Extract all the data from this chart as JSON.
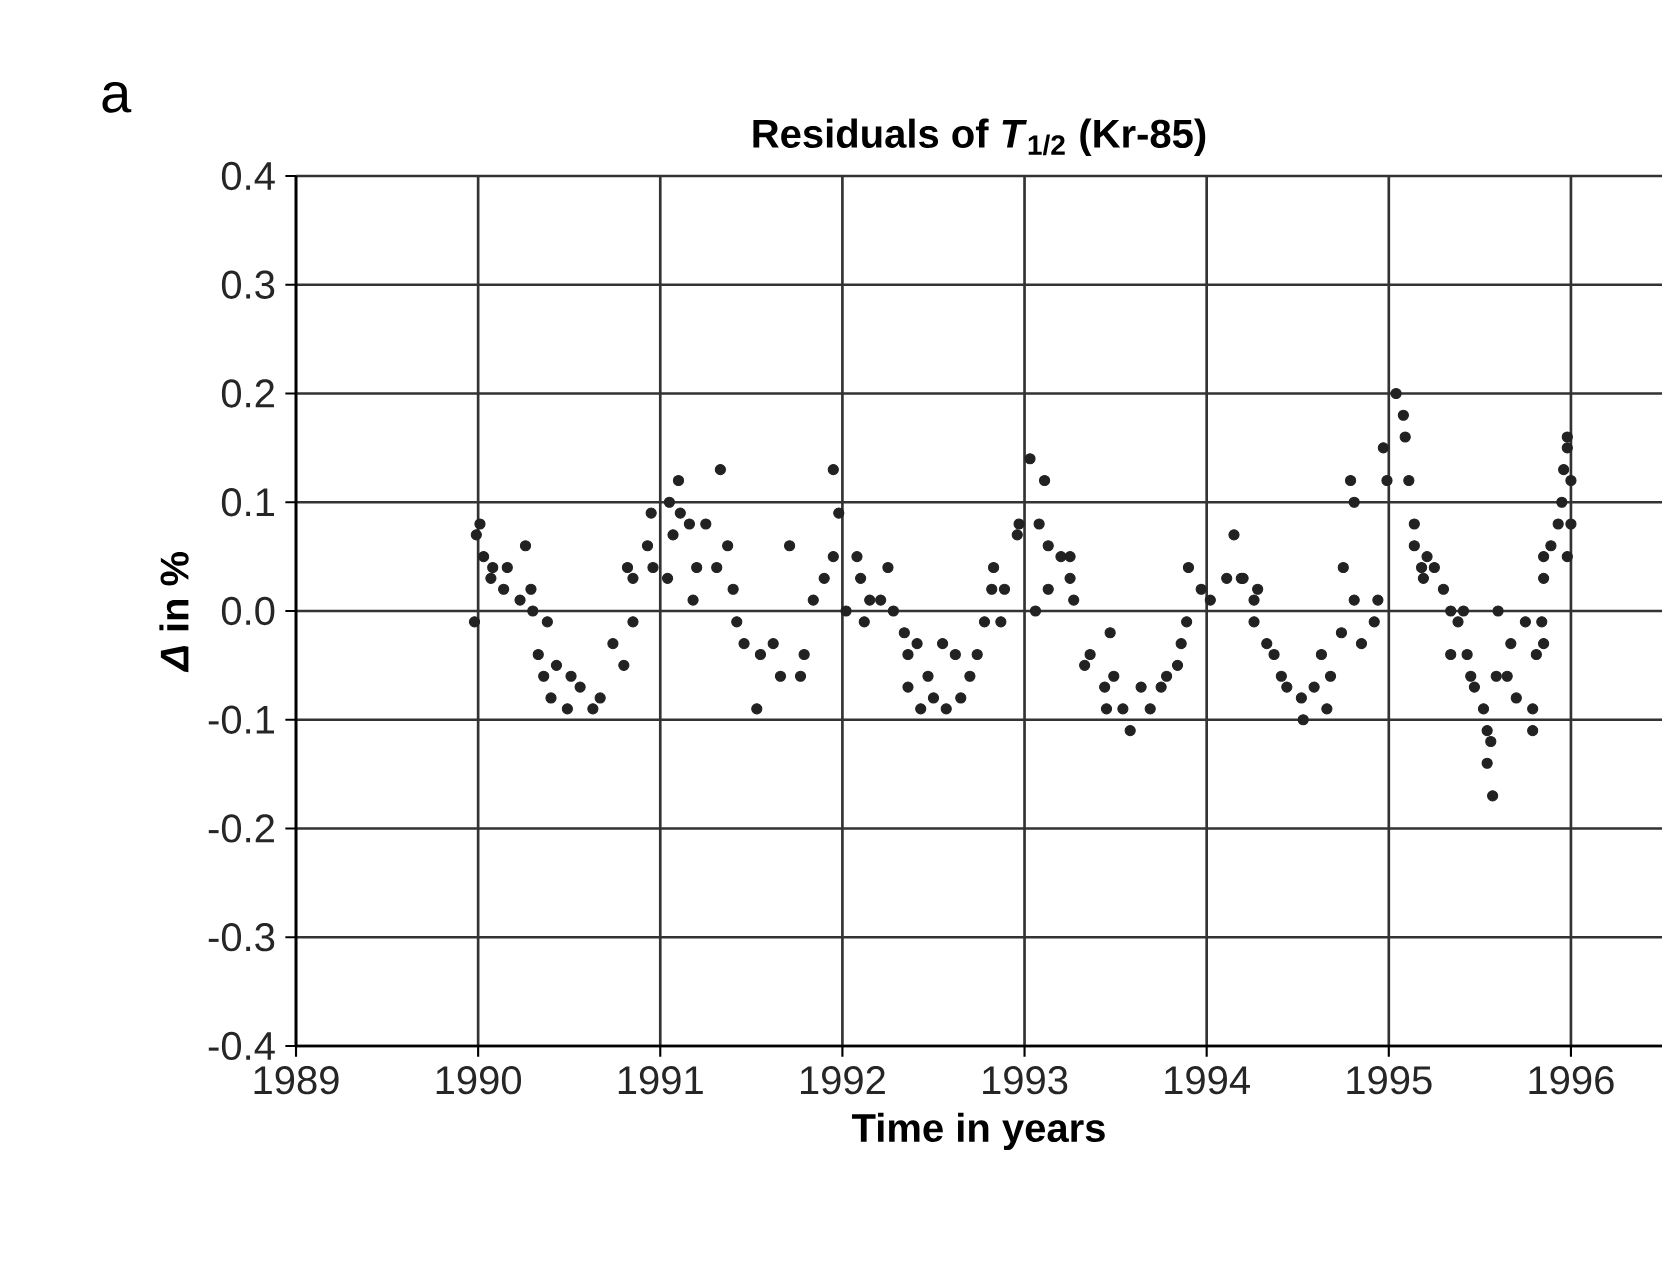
{
  "chart_data": {
    "type": "scatter",
    "title": "Residuals of *T*$_{1/2}$ (Kr-85)",
    "xlabel": "Time in years",
    "ylabel": "*Δ* in %",
    "annotations": [
      "a"
    ],
    "xlim": [
      1989,
      1996.5
    ],
    "xticks": [
      1989,
      1990,
      1991,
      1992,
      1993,
      1994,
      1995,
      1996
    ],
    "ylim": [
      -0.4,
      0.4
    ],
    "yticks": [
      {
        "value": -0.4,
        "label": "-0.4"
      },
      {
        "value": -0.3,
        "label": "-0.3"
      },
      {
        "value": -0.2,
        "label": "-0.2"
      },
      {
        "value": -0.1,
        "label": "-0.1"
      },
      {
        "value": 0,
        "label": "0.0"
      },
      {
        "value": 0.1,
        "label": "0.1"
      },
      {
        "value": 0.2,
        "label": "0.2"
      },
      {
        "value": 0.3,
        "label": "0.3"
      },
      {
        "value": 0.4,
        "label": "0.4"
      }
    ],
    "grid": true,
    "marker": "circle",
    "series": [
      {
        "color": "#222222",
        "x": [
          1989.98,
          1990.01,
          1989.99,
          1990.03,
          1990.08,
          1990.16,
          1990.07,
          1990.14,
          1990.26,
          1990.23,
          1990.29,
          1990.3,
          1990.38,
          1990.33,
          1990.43,
          1990.36,
          1990.4,
          1990.49,
          1990.51,
          1990.56,
          1990.63,
          1990.67,
          1990.74,
          1990.8,
          1990.85,
          1990.82,
          1990.85,
          1990.93,
          1990.96,
          1990.95,
          1991.04,
          1991.05,
          1991.1,
          1991.11,
          1991.07,
          1991.16,
          1991.18,
          1991.25,
          1991.2,
          1991.33,
          1991.31,
          1991.37,
          1991.4,
          1991.42,
          1991.46,
          1991.53,
          1991.55,
          1991.62,
          1991.66,
          1991.77,
          1991.79,
          1991.71,
          1991.84,
          1991.9,
          1991.95,
          1991.98,
          1991.95,
          1992.02,
          1992.08,
          1992.1,
          1992.15,
          1992.25,
          1992.21,
          1992.12,
          1992.28,
          1992.34,
          1992.41,
          1992.36,
          1992.55,
          1992.47,
          1992.36,
          1992.43,
          1992.57,
          1992.5,
          1992.62,
          1992.65,
          1992.7,
          1992.74,
          1992.78,
          1992.87,
          1992.83,
          1992.89,
          1992.82,
          1992.96,
          1992.97,
          1993.03,
          1993.11,
          1993.08,
          1993.13,
          1993.13,
          1993.06,
          1993.2,
          1993.25,
          1993.25,
          1993.27,
          1993.36,
          1993.33,
          1993.47,
          1993.44,
          1993.49,
          1993.45,
          1993.58,
          1993.54,
          1993.64,
          1993.69,
          1993.75,
          1993.78,
          1993.84,
          1993.86,
          1993.89,
          1993.9,
          1993.97,
          1994.02,
          1994.11,
          1994.15,
          1994.19,
          1994.26,
          1994.2,
          1994.28,
          1994.26,
          1994.33,
          1994.37,
          1994.41,
          1994.44,
          1994.52,
          1994.53,
          1994.59,
          1994.63,
          1994.66,
          1994.68,
          1994.74,
          1994.75,
          1994.81,
          1994.79,
          1994.81,
          1994.85,
          1994.94,
          1994.92,
          1994.97,
          1994.99,
          1995.04,
          1995.08,
          1995.09,
          1995.11,
          1995.14,
          1995.14,
          1995.18,
          1995.21,
          1995.19,
          1995.25,
          1995.3,
          1995.34,
          1995.38,
          1995.41,
          1995.34,
          1995.43,
          1995.45,
          1995.47,
          1995.52,
          1995.54,
          1995.54,
          1995.57,
          1995.56,
          1995.59,
          1995.6,
          1995.67,
          1995.65,
          1995.7,
          1995.75,
          1995.79,
          1995.79,
          1995.81,
          1995.85,
          1995.84,
          1995.85,
          1995.85,
          1995.89,
          1995.93,
          1995.98,
          1995.95,
          1995.96,
          1995.98,
          1995.98,
          1996.0,
          1996.0
        ],
        "values": [
          -0.01,
          0.08,
          0.07,
          0.05,
          0.04,
          0.04,
          0.03,
          0.02,
          0.06,
          0.01,
          0.02,
          0.0,
          -0.01,
          -0.04,
          -0.05,
          -0.06,
          -0.08,
          -0.09,
          -0.06,
          -0.07,
          -0.09,
          -0.08,
          -0.03,
          -0.05,
          -0.01,
          0.04,
          0.03,
          0.06,
          0.04,
          0.09,
          0.03,
          0.1,
          0.12,
          0.09,
          0.07,
          0.08,
          0.01,
          0.08,
          0.04,
          0.13,
          0.04,
          0.06,
          0.02,
          -0.01,
          -0.03,
          -0.09,
          -0.04,
          -0.03,
          -0.06,
          -0.06,
          -0.04,
          0.06,
          0.01,
          0.03,
          0.13,
          0.09,
          0.05,
          0.0,
          0.05,
          0.03,
          0.01,
          0.04,
          0.01,
          -0.01,
          0.0,
          -0.02,
          -0.03,
          -0.04,
          -0.03,
          -0.06,
          -0.07,
          -0.09,
          -0.09,
          -0.08,
          -0.04,
          -0.08,
          -0.06,
          -0.04,
          -0.01,
          -0.01,
          0.04,
          0.02,
          0.02,
          0.07,
          0.08,
          0.14,
          0.12,
          0.08,
          0.06,
          0.02,
          0.0,
          0.05,
          0.05,
          0.03,
          0.01,
          -0.04,
          -0.05,
          -0.02,
          -0.07,
          -0.06,
          -0.09,
          -0.11,
          -0.09,
          -0.07,
          -0.09,
          -0.07,
          -0.06,
          -0.05,
          -0.03,
          -0.01,
          0.04,
          0.02,
          0.01,
          0.03,
          0.07,
          0.03,
          0.01,
          0.03,
          0.02,
          -0.01,
          -0.03,
          -0.04,
          -0.06,
          -0.07,
          -0.08,
          -0.1,
          -0.07,
          -0.04,
          -0.09,
          -0.06,
          -0.02,
          0.04,
          0.01,
          0.12,
          0.1,
          -0.03,
          0.01,
          -0.01,
          0.15,
          0.12,
          0.2,
          0.18,
          0.16,
          0.12,
          0.08,
          0.06,
          0.04,
          0.05,
          0.03,
          0.04,
          0.02,
          0.0,
          -0.01,
          0.0,
          -0.04,
          -0.04,
          -0.06,
          -0.07,
          -0.09,
          -0.11,
          -0.14,
          -0.17,
          -0.12,
          -0.06,
          0.0,
          -0.03,
          -0.06,
          -0.08,
          -0.01,
          -0.09,
          -0.11,
          -0.04,
          -0.03,
          -0.01,
          0.03,
          0.05,
          0.06,
          0.08,
          0.05,
          0.1,
          0.13,
          0.15,
          0.16,
          0.12,
          0.08
        ]
      }
    ]
  }
}
